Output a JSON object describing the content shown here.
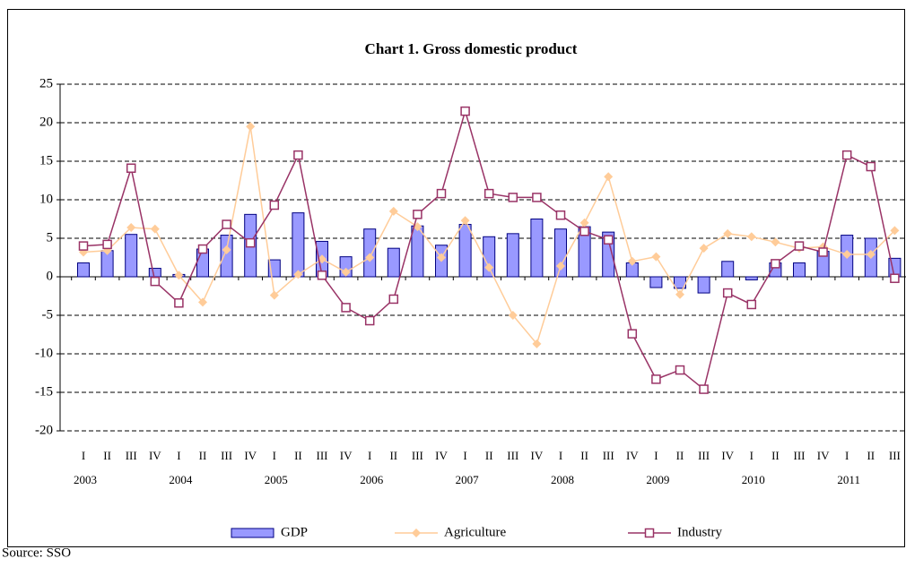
{
  "chart_data": {
    "type": "bar_line",
    "title": "Chart 1. Gross domestic product",
    "source": "Source: SSO",
    "categories": [
      "I",
      "II",
      "III",
      "IV",
      "I",
      "II",
      "III",
      "IV",
      "I",
      "II",
      "III",
      "IV",
      "I",
      "II",
      "III",
      "IV",
      "I",
      "II",
      "III",
      "IV",
      "I",
      "II",
      "III",
      "IV",
      "I",
      "II",
      "III",
      "IV",
      "I",
      "II",
      "III",
      "IV",
      "I",
      "II",
      "III"
    ],
    "year_labels": [
      "2003",
      null,
      null,
      null,
      "2004",
      null,
      null,
      null,
      "2005",
      null,
      null,
      null,
      "2006",
      null,
      null,
      null,
      "2007",
      null,
      null,
      null,
      "2008",
      null,
      null,
      null,
      "2009",
      null,
      null,
      null,
      "2010",
      null,
      null,
      null,
      "2011",
      null,
      null
    ],
    "ylim": [
      -20,
      25
    ],
    "yticks": [
      -20,
      -15,
      -10,
      -5,
      0,
      5,
      10,
      15,
      20,
      25
    ],
    "grid": true,
    "series": [
      {
        "name": "GDP",
        "kind": "bar",
        "color": "#9999ff",
        "values": [
          1.8,
          3.4,
          5.5,
          1.1,
          0.3,
          3.6,
          5.4,
          8.1,
          2.2,
          8.3,
          4.6,
          2.6,
          6.2,
          3.7,
          6.6,
          4.1,
          6.8,
          5.2,
          5.6,
          7.5,
          6.2,
          6.5,
          5.8,
          1.8,
          -1.4,
          -1.5,
          -2.1,
          2.0,
          -0.4,
          1.8,
          1.8,
          3.3,
          5.4,
          5.0,
          2.4
        ]
      },
      {
        "name": "Agriculture",
        "kind": "line",
        "marker": "diamond",
        "color": "#ffcc99",
        "values": [
          3.2,
          3.4,
          6.4,
          6.2,
          0.2,
          -3.3,
          3.5,
          19.5,
          -2.4,
          0.3,
          2.3,
          0.6,
          2.5,
          8.5,
          6.5,
          2.5,
          7.3,
          1.2,
          -5.0,
          -8.7,
          1.4,
          7.0,
          13.0,
          2.0,
          2.6,
          -2.3,
          3.7,
          5.6,
          5.2,
          4.5,
          3.7,
          3.9,
          2.9,
          2.9,
          6.0
        ]
      },
      {
        "name": "Industry",
        "kind": "line",
        "marker": "square",
        "color": "#993366",
        "values": [
          4.0,
          4.2,
          14.1,
          -0.6,
          -3.4,
          3.6,
          6.8,
          4.4,
          9.3,
          15.8,
          0.2,
          -4.0,
          -5.7,
          -2.9,
          8.1,
          10.8,
          21.5,
          10.8,
          10.3,
          10.3,
          8.0,
          5.9,
          4.8,
          -7.4,
          -13.3,
          -12.1,
          -14.6,
          -2.1,
          -3.6,
          1.7,
          4.0,
          3.2,
          15.8,
          14.3,
          -0.2
        ]
      }
    ]
  }
}
